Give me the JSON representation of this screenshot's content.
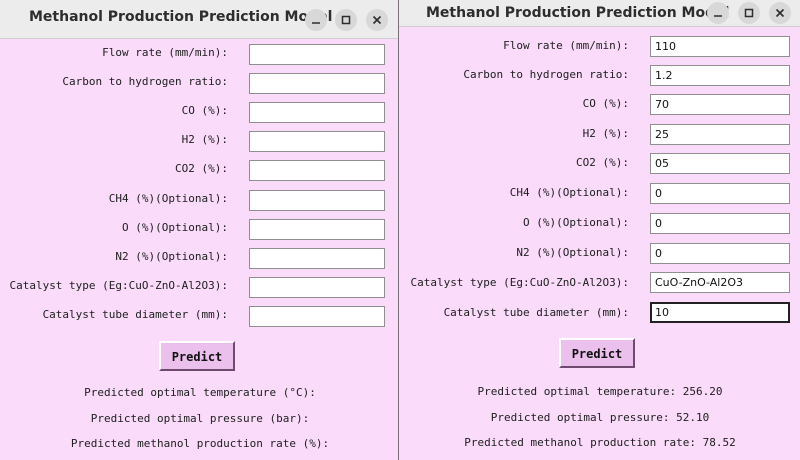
{
  "left_window": {
    "title": "Methanol Production Prediction Model",
    "fields": [
      {
        "label": "Flow rate (mm/min):",
        "value": ""
      },
      {
        "label": "Carbon to hydrogen ratio:",
        "value": ""
      },
      {
        "label": "CO (%):",
        "value": ""
      },
      {
        "label": "H2 (%):",
        "value": ""
      },
      {
        "label": "CO2 (%):",
        "value": ""
      },
      {
        "label": "CH4 (%)(Optional):",
        "value": ""
      },
      {
        "label": "O (%)(Optional):",
        "value": ""
      },
      {
        "label": "N2 (%)(Optional):",
        "value": ""
      },
      {
        "label": "Catalyst type (Eg:CuO-ZnO-Al2O3):",
        "value": ""
      },
      {
        "label": "Catalyst tube diameter (mm):",
        "value": ""
      }
    ],
    "predict_label": "Predict",
    "results": [
      "Predicted optimal temperature (°C):",
      "Predicted optimal pressure (bar):",
      "Predicted methanol production rate (%):"
    ]
  },
  "right_window": {
    "title": "Methanol Production Prediction Model",
    "fields": [
      {
        "label": "Flow rate (mm/min):",
        "value": "110"
      },
      {
        "label": "Carbon to hydrogen ratio:",
        "value": "1.2"
      },
      {
        "label": "CO (%):",
        "value": "70"
      },
      {
        "label": "H2 (%):",
        "value": "25"
      },
      {
        "label": "CO2 (%):",
        "value": "05"
      },
      {
        "label": "CH4 (%)(Optional):",
        "value": "0"
      },
      {
        "label": "O (%)(Optional):",
        "value": "0"
      },
      {
        "label": "N2 (%)(Optional):",
        "value": "0"
      },
      {
        "label": "Catalyst type (Eg:CuO-ZnO-Al2O3):",
        "value": "CuO-ZnO-Al2O3"
      },
      {
        "label": "Catalyst tube diameter (mm):",
        "value": "10"
      }
    ],
    "predict_label": "Predict",
    "results": [
      "Predicted optimal temperature: 256.20",
      "Predicted optimal pressure: 52.10",
      "Predicted methanol production rate: 78.52"
    ]
  },
  "window_controls": {
    "minimize": "minimize-icon",
    "maximize": "maximize-icon",
    "close": "close-icon"
  },
  "colors": {
    "window_background": "#fadcfa",
    "button_background": "#ecc0ec",
    "titlebar": "#ececec"
  }
}
